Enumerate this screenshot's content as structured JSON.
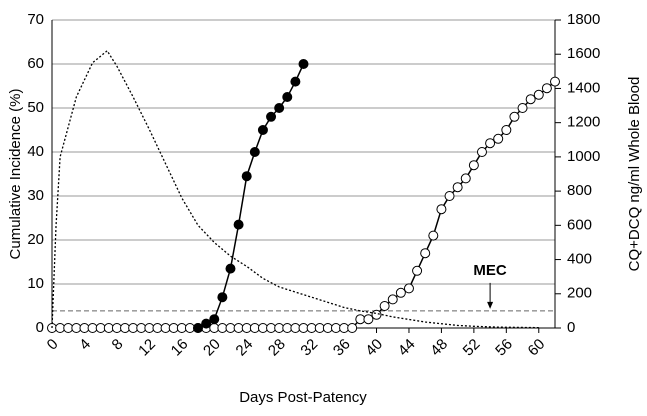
{
  "chart_data": {
    "type": "line",
    "xlabel": "Days Post-Patency",
    "ylabel": "Cumulative Incidence (%)",
    "y2label": "CQ+DCQ ng/ml Whole Blood",
    "xlim": [
      0,
      62
    ],
    "xticks": [
      0,
      4,
      8,
      12,
      16,
      20,
      24,
      28,
      32,
      36,
      40,
      44,
      48,
      52,
      56,
      60
    ],
    "ylim": [
      0,
      70
    ],
    "yticks": [
      0,
      10,
      20,
      30,
      40,
      50,
      60,
      70
    ],
    "y2lim": [
      0,
      1800
    ],
    "y2ticks": [
      0,
      200,
      400,
      600,
      800,
      1000,
      1200,
      1400,
      1600,
      1800
    ],
    "grid": true,
    "mec": {
      "label": "MEC",
      "value": 100,
      "x": 54
    },
    "series": [
      {
        "style": "open",
        "color": "#000000",
        "x": [
          0,
          1,
          2,
          3,
          4,
          5,
          6,
          7,
          8,
          9,
          10,
          11,
          12,
          13,
          14,
          15,
          16,
          17,
          18,
          19,
          20,
          21,
          22,
          23,
          24,
          25,
          26,
          27,
          28,
          29,
          30,
          31,
          32,
          33,
          34,
          35,
          36,
          37,
          38,
          39,
          40,
          41,
          42,
          43,
          44,
          45,
          46,
          47,
          48,
          49,
          50,
          51,
          52,
          53,
          54,
          55,
          56,
          57,
          58,
          59,
          60,
          61,
          62
        ],
        "values": [
          0,
          0,
          0,
          0,
          0,
          0,
          0,
          0,
          0,
          0,
          0,
          0,
          0,
          0,
          0,
          0,
          0,
          0,
          0,
          0,
          0,
          0,
          0,
          0,
          0,
          0,
          0,
          0,
          0,
          0,
          0,
          0,
          0,
          0,
          0,
          0,
          0,
          0,
          2,
          2,
          3,
          5,
          6.5,
          8,
          9,
          13,
          17,
          21,
          27,
          30,
          32,
          34,
          37,
          40,
          42,
          43,
          45,
          48,
          50,
          52,
          53,
          54.5,
          56
        ]
      },
      {
        "style": "filled",
        "color": "#000000",
        "x": [
          18,
          19,
          20,
          21,
          22,
          23,
          24,
          25,
          26,
          27,
          28,
          29,
          30,
          31
        ],
        "values": [
          0,
          1,
          2,
          7,
          13.5,
          23.5,
          34.5,
          40,
          45,
          48,
          50,
          52.5,
          56,
          60
        ]
      },
      {
        "style": "dotted",
        "color": "#000000",
        "axis": "y2",
        "x": [
          0,
          0.5,
          1,
          3,
          5,
          6.8,
          8,
          10,
          12,
          14,
          16,
          18,
          20,
          22,
          24,
          26,
          28,
          30,
          32,
          34,
          36,
          38,
          40,
          42,
          44,
          46,
          48,
          50,
          52,
          55,
          60
        ],
        "values": [
          0,
          600,
          1000,
          1350,
          1550,
          1620,
          1530,
          1350,
          1160,
          960,
          760,
          600,
          500,
          420,
          360,
          290,
          240,
          210,
          180,
          150,
          120,
          100,
          85,
          65,
          50,
          35,
          25,
          15,
          10,
          5,
          2
        ]
      }
    ]
  }
}
